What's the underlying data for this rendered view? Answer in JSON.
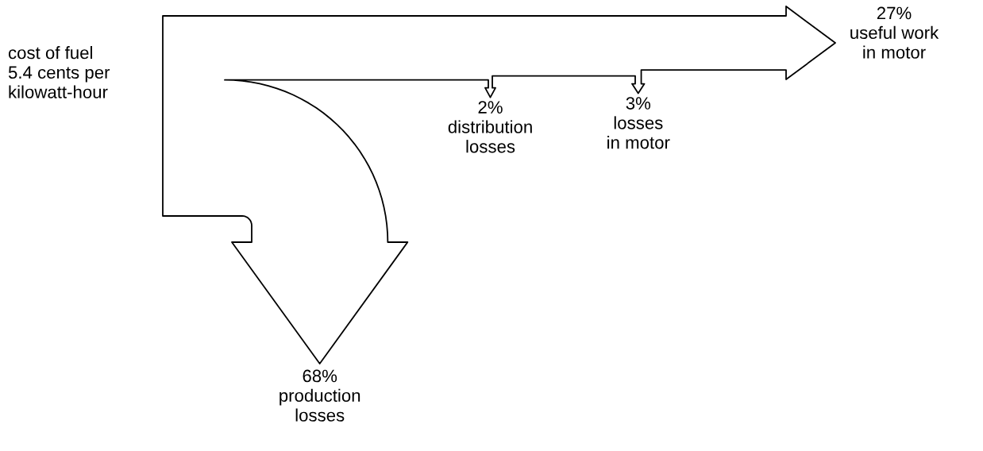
{
  "chart_data": {
    "type": "other",
    "categories": [
      "production\nlosses",
      "distribution\nlosses",
      "losses\nin motor",
      "useful work\nin motor"
    ],
    "values": [
      68,
      2,
      3,
      27
    ],
    "value_labels": [
      "68%",
      "2%",
      "3%",
      "27%"
    ],
    "annotations": [
      "cost of fuel\n5.4 cents per\nkilowatt-hour"
    ]
  }
}
